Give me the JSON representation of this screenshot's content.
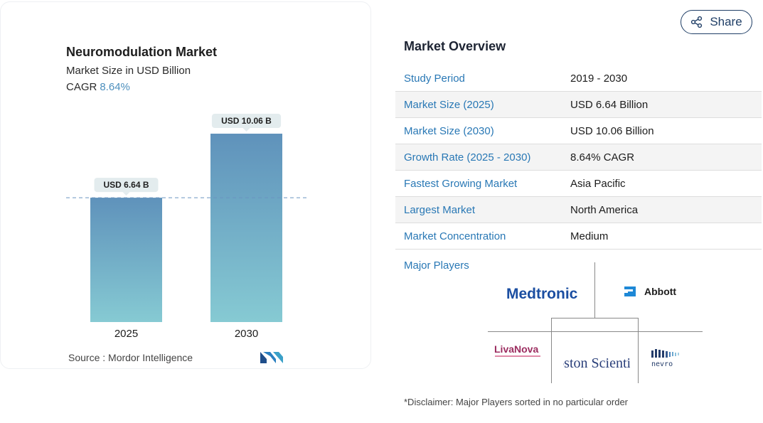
{
  "chart": {
    "title": "Neuromodulation Market",
    "subtitle": "Market Size in USD Billion",
    "cagr_label": "CAGR",
    "cagr_value": "8.64%",
    "source": "Source :  Mordor Intelligence"
  },
  "chart_data": {
    "type": "bar",
    "title": "Neuromodulation Market",
    "subtitle": "Market Size in USD Billion",
    "categories": [
      "2025",
      "2030"
    ],
    "values": [
      6.64,
      10.06
    ],
    "data_labels": [
      "USD 6.64 B",
      "USD 10.06 B"
    ],
    "reference_line": 6.64,
    "ylim": [
      0,
      11.2
    ],
    "grid": false,
    "colors": {
      "bar_top": "#5f92bb",
      "bar_bottom": "#86cad3",
      "label_bg": "#e3ecee",
      "ref_line": "#6a93c0"
    }
  },
  "share": {
    "label": "Share",
    "icon": "share-icon"
  },
  "overview": {
    "title": "Market Overview",
    "rows": [
      {
        "key": "Study Period",
        "value": "2019 - 2030"
      },
      {
        "key": "Market Size (2025)",
        "value": "USD 6.64 Billion"
      },
      {
        "key": "Market Size (2030)",
        "value": "USD 10.06 Billion"
      },
      {
        "key": "Growth Rate (2025 - 2030)",
        "value": "8.64% CAGR"
      },
      {
        "key": "Fastest Growing Market",
        "value": "Asia Pacific"
      },
      {
        "key": "Largest Market",
        "value": "North America"
      },
      {
        "key": "Market Concentration",
        "value": "Medium"
      }
    ]
  },
  "players": {
    "label": "Major Players",
    "logos": [
      "Medtronic",
      "Abbott",
      "LivaNova",
      "Boston Scientific",
      "nevro"
    ]
  },
  "disclaimer": "*Disclaimer: Major Players sorted in no particular order",
  "colors": {
    "link_blue": "#2978b5",
    "navy": "#1f3e66"
  }
}
